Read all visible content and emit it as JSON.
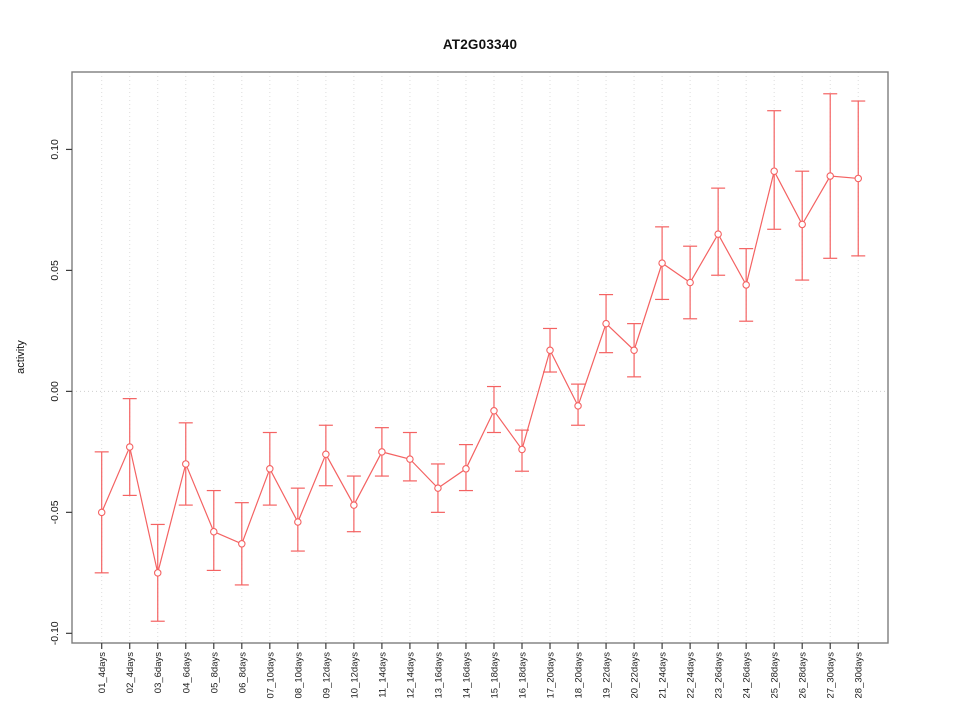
{
  "page": {
    "background": "#ffffff"
  },
  "colors": {
    "series": "#f46262",
    "marker_fill": "#ffffff",
    "frame": "#7d7d7d",
    "tick": "#3c3c3c",
    "grid": "#dddddd",
    "zero_line": "#cfcfcf",
    "text": "#1a1a1a",
    "background": "#ffffff"
  },
  "chart_data": {
    "type": "line",
    "title": "AT2G03340",
    "xlabel": "",
    "ylabel": "activity",
    "ylim": [
      -0.104,
      0.132
    ],
    "grid": {
      "vertical": "dotted-per-category",
      "horizontal": "dotted-at-zero-only"
    },
    "legend": "none",
    "marker": "open-circle",
    "error_bars": true,
    "y_tick_values": [
      -0.1,
      -0.05,
      0.0,
      0.05,
      0.1
    ],
    "y_tick_labels": [
      "-0.10",
      "-0.05",
      "0.00",
      "0.05",
      "0.10"
    ],
    "categories": [
      "01_4days",
      "02_4days",
      "03_6days",
      "04_6days",
      "05_8days",
      "06_8days",
      "07_10days",
      "08_10days",
      "09_12days",
      "10_12days",
      "11_14days",
      "12_14days",
      "13_16days",
      "14_16days",
      "15_18days",
      "16_18days",
      "17_20days",
      "18_20days",
      "19_22days",
      "20_22days",
      "21_24days",
      "22_24days",
      "23_26days",
      "24_26days",
      "25_28days",
      "26_28days",
      "27_30days",
      "28_30days"
    ],
    "series": [
      {
        "name": "activity",
        "color": "#f46262",
        "values": [
          -0.05,
          -0.023,
          -0.075,
          -0.03,
          -0.058,
          -0.063,
          -0.032,
          -0.054,
          -0.026,
          -0.047,
          -0.025,
          -0.028,
          -0.04,
          -0.032,
          -0.008,
          -0.024,
          0.017,
          -0.006,
          0.028,
          0.017,
          0.053,
          0.045,
          0.065,
          0.044,
          0.091,
          0.069,
          0.089,
          0.088
        ],
        "error_low": [
          -0.075,
          -0.043,
          -0.095,
          -0.047,
          -0.074,
          -0.08,
          -0.047,
          -0.066,
          -0.039,
          -0.058,
          -0.035,
          -0.037,
          -0.05,
          -0.041,
          -0.017,
          -0.033,
          0.008,
          -0.014,
          0.016,
          0.006,
          0.038,
          0.03,
          0.048,
          0.029,
          0.067,
          0.046,
          0.055,
          0.056
        ],
        "error_high": [
          -0.025,
          -0.003,
          -0.055,
          -0.013,
          -0.041,
          -0.046,
          -0.017,
          -0.04,
          -0.014,
          -0.035,
          -0.015,
          -0.017,
          -0.03,
          -0.022,
          0.002,
          -0.016,
          0.026,
          0.003,
          0.04,
          0.028,
          0.068,
          0.06,
          0.084,
          0.059,
          0.116,
          0.091,
          0.123,
          0.12
        ]
      }
    ]
  }
}
